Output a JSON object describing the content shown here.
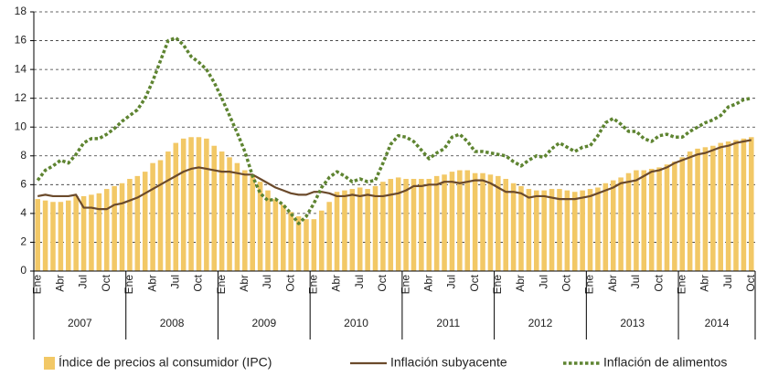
{
  "chart_data": {
    "type": "bar_line",
    "categories": [
      "Ene",
      null,
      null,
      "Abr",
      null,
      null,
      "Jul",
      null,
      null,
      "Oct",
      null,
      null,
      "Ene",
      null,
      null,
      "Abr",
      null,
      null,
      "Jul",
      null,
      null,
      "Oct",
      null,
      null,
      "Ene",
      null,
      null,
      "Abr",
      null,
      null,
      "Jul",
      null,
      null,
      "Oct",
      null,
      null,
      "Ene",
      null,
      null,
      "Abr",
      null,
      null,
      "Jul",
      null,
      null,
      "Oct",
      null,
      null,
      "Ene",
      null,
      null,
      "Abr",
      null,
      null,
      "Jul",
      null,
      null,
      "Oct",
      null,
      null,
      "Ene",
      null,
      null,
      "Abr",
      null,
      null,
      "Jul",
      null,
      null,
      "Oct",
      null,
      null,
      "Ene",
      null,
      null,
      "Abr",
      null,
      null,
      "Jul",
      null,
      null,
      "Oct",
      null,
      null,
      "Ene",
      null,
      null,
      "Abr",
      null,
      null,
      "Jul",
      null,
      null,
      "Oct"
    ],
    "years": [
      "2007",
      "2008",
      "2009",
      "2010",
      "2011",
      "2012",
      "2013",
      "2014"
    ],
    "series": [
      {
        "name": "Índice de precios al consumidor (IPC)",
        "kind": "bar",
        "color": "#f2c866",
        "values": [
          5.0,
          4.9,
          4.8,
          4.8,
          4.9,
          5.2,
          5.2,
          5.3,
          5.4,
          5.7,
          5.9,
          6.1,
          6.4,
          6.6,
          6.9,
          7.5,
          7.7,
          8.3,
          8.9,
          9.2,
          9.3,
          9.3,
          9.2,
          8.7,
          8.3,
          7.9,
          7.5,
          7.0,
          6.6,
          6.2,
          5.6,
          5.0,
          4.6,
          4.1,
          3.8,
          3.6,
          3.6,
          4.2,
          4.8,
          5.5,
          5.6,
          5.7,
          5.8,
          5.7,
          5.9,
          6.2,
          6.4,
          6.5,
          6.4,
          6.4,
          6.4,
          6.4,
          6.6,
          6.7,
          6.9,
          7.0,
          7.0,
          6.8,
          6.8,
          6.7,
          6.6,
          6.4,
          6.1,
          5.9,
          5.7,
          5.6,
          5.6,
          5.7,
          5.7,
          5.6,
          5.5,
          5.6,
          5.7,
          5.8,
          6.1,
          6.3,
          6.5,
          6.8,
          7.0,
          7.0,
          7.1,
          7.2,
          7.4,
          7.6,
          7.9,
          8.3,
          8.5,
          8.6,
          8.7,
          8.9,
          9.0,
          9.1,
          9.2,
          9.3
        ]
      },
      {
        "name": "Inflación subyacente",
        "kind": "line",
        "color": "#6b4a2b",
        "values": [
          5.2,
          5.3,
          5.2,
          5.2,
          5.2,
          5.3,
          4.4,
          4.4,
          4.3,
          4.3,
          4.6,
          4.7,
          4.9,
          5.1,
          5.4,
          5.7,
          6.0,
          6.3,
          6.6,
          6.9,
          7.1,
          7.2,
          7.1,
          7.0,
          6.9,
          6.9,
          6.8,
          6.7,
          6.7,
          6.4,
          6.1,
          5.8,
          5.6,
          5.4,
          5.3,
          5.3,
          5.5,
          5.5,
          5.4,
          5.2,
          5.2,
          5.3,
          5.2,
          5.3,
          5.2,
          5.2,
          5.3,
          5.4,
          5.6,
          5.9,
          5.9,
          6.0,
          6.0,
          6.2,
          6.2,
          6.1,
          6.2,
          6.3,
          6.3,
          6.1,
          5.8,
          5.5,
          5.5,
          5.4,
          5.1,
          5.2,
          5.2,
          5.1,
          5.0,
          5.0,
          5.0,
          5.1,
          5.2,
          5.4,
          5.6,
          5.8,
          6.1,
          6.2,
          6.3,
          6.6,
          6.9,
          7.0,
          7.2,
          7.5,
          7.7,
          7.9,
          8.1,
          8.2,
          8.4,
          8.6,
          8.7,
          8.9,
          9.0,
          9.1
        ]
      },
      {
        "name": "Inflación de alimentos",
        "kind": "dotted",
        "color": "#5e8431",
        "values": [
          6.3,
          7.0,
          7.3,
          7.7,
          7.5,
          8.1,
          8.9,
          9.2,
          9.2,
          9.5,
          9.9,
          10.4,
          10.8,
          11.2,
          12.0,
          13.2,
          14.6,
          16.0,
          16.2,
          15.7,
          14.9,
          14.5,
          14.0,
          13.1,
          12.0,
          10.8,
          9.6,
          8.3,
          6.6,
          5.4,
          4.9,
          5.0,
          4.6,
          4.0,
          3.3,
          3.8,
          4.7,
          5.8,
          6.5,
          6.9,
          6.6,
          6.2,
          6.4,
          6.2,
          6.3,
          7.5,
          8.8,
          9.4,
          9.3,
          9.0,
          8.4,
          7.8,
          8.2,
          8.5,
          9.3,
          9.5,
          9.0,
          8.3,
          8.3,
          8.2,
          8.1,
          8.0,
          7.6,
          7.3,
          7.7,
          8.0,
          7.9,
          8.5,
          8.9,
          8.6,
          8.3,
          8.6,
          8.7,
          9.4,
          10.3,
          10.6,
          10.2,
          9.7,
          9.7,
          9.2,
          9.0,
          9.4,
          9.5,
          9.3,
          9.3,
          9.7,
          10.0,
          10.3,
          10.5,
          10.8,
          11.4,
          11.6,
          11.9,
          12.0
        ]
      }
    ],
    "ylim": [
      0,
      18
    ],
    "yticks": [
      0,
      2,
      4,
      6,
      8,
      10,
      12,
      14,
      16,
      18
    ],
    "grid": true
  }
}
